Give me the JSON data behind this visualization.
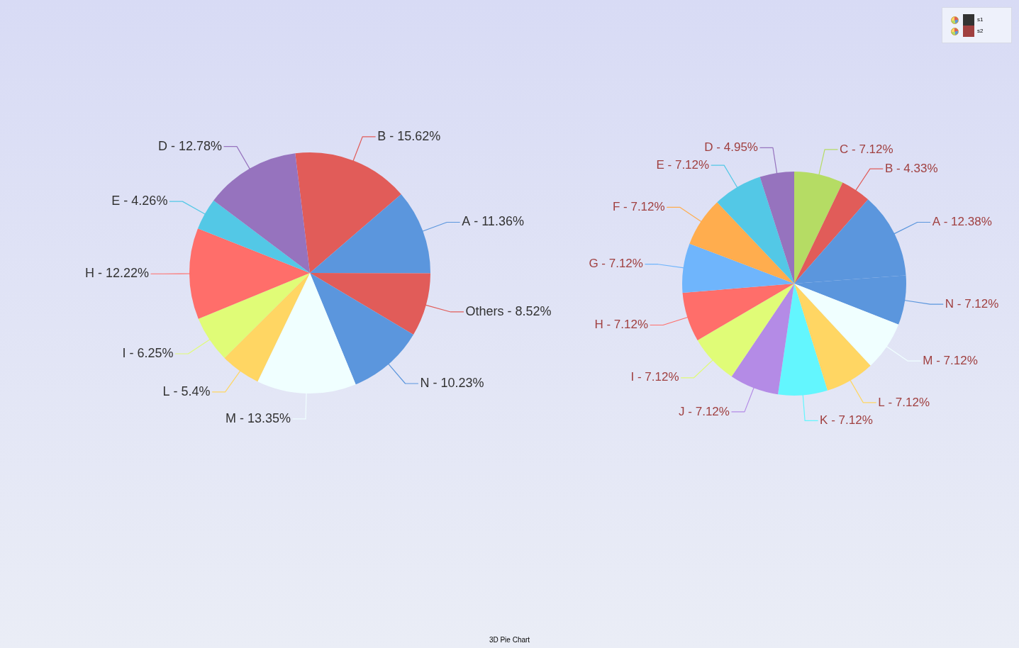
{
  "chart_data": [
    {
      "type": "pie",
      "title": "3D Pie Chart",
      "legend": "top right",
      "categories": [
        "B",
        "A",
        "Others",
        "N",
        "M",
        "L",
        "I",
        "H",
        "E",
        "D"
      ],
      "series": [
        {
          "name": "s1",
          "color": "#333333",
          "values": [
            15.62,
            11.36,
            8.52,
            10.23,
            13.35,
            5.4,
            6.25,
            12.22,
            4.26,
            12.78
          ],
          "colors": [
            "#e15c59",
            "#5b96dd",
            "#e15c59",
            "#5b96dd",
            "#f0ffff",
            "#ffd663",
            "#e0fc77",
            "#ff6e6a",
            "#53c8e6",
            "#9673be"
          ],
          "value_labels": [
            "‐ 15.62%",
            "‐ 11.36%",
            "‐ 8.52%",
            "‐ 10.23%",
            "‐ 13.35%",
            "‐ 5.4%",
            "‐ 6.25%",
            "‐ 12.22%",
            "‐ 4.26%",
            "‐ 12.78%"
          ]
        }
      ]
    },
    {
      "type": "pie",
      "legend": "top right",
      "categories": [
        "C",
        "B",
        "A",
        "N",
        "M",
        "L",
        "K",
        "J",
        "I",
        "H",
        "G",
        "F",
        "E",
        "D"
      ],
      "series": [
        {
          "name": "s2",
          "color": "#a04040",
          "values": [
            7.12,
            4.33,
            12.38,
            7.12,
            7.12,
            7.12,
            7.12,
            7.12,
            7.12,
            7.12,
            7.12,
            7.12,
            7.12,
            4.95
          ],
          "colors": [
            "#b5dc64",
            "#e15c59",
            "#5b96dd",
            "#5b96dd",
            "#f0ffff",
            "#ffd663",
            "#63f6fe",
            "#b48be6",
            "#e0fc77",
            "#ff6e6a",
            "#6fb5fc",
            "#ffad4e",
            "#53c8e6",
            "#9673be"
          ],
          "value_labels": [
            "‐ 7.12%",
            "‐ 4.33%",
            "‐ 12.38%",
            "‐ 7.12%",
            "‐ 7.12%",
            "‐ 7.12%",
            "‐ 7.12%",
            "‐ 7.12%",
            "‐ 7.12%",
            "‐ 7.12%",
            "‐ 7.12%",
            "‐ 7.12%",
            "‐ 7.12%",
            "‐ 4.95%"
          ]
        }
      ]
    }
  ]
}
